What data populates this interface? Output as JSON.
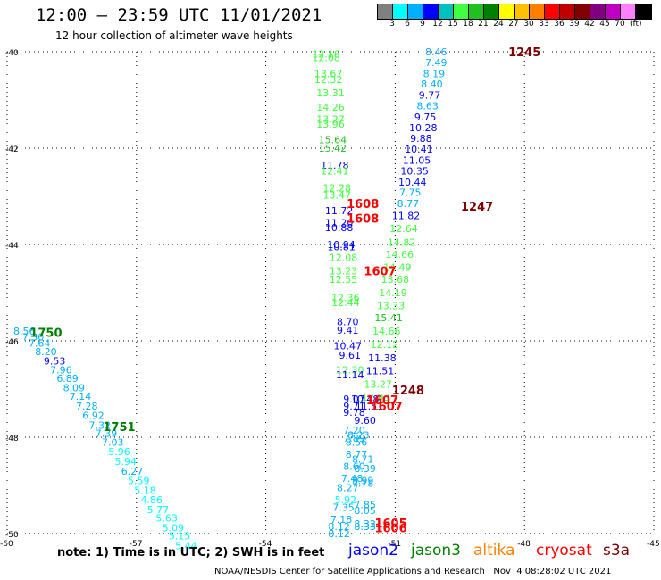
{
  "title": "12:00 – 23:59 UTC 11/01/2021",
  "subtitle": "12 hour collection of altimeter wave heights",
  "colorbar": {
    "colors": [
      "#808080",
      "#00ffff",
      "#00b0ff",
      "#0000ff",
      "#00c0c0",
      "#40ff40",
      "#20c020",
      "#008000",
      "#ffff00",
      "#ffc000",
      "#ff8000",
      "#ff0000",
      "#c00000",
      "#800000",
      "#800080",
      "#c000c0",
      "#ff80ff",
      "#000000"
    ],
    "labels": [
      "3",
      "6",
      "9",
      "12",
      "15",
      "18",
      "21",
      "24",
      "27",
      "30",
      "33",
      "36",
      "39",
      "42",
      "45",
      "70"
    ],
    "unit": "(ft)"
  },
  "axes": {
    "lat_labels": [
      "-40",
      "-42",
      "-44",
      "-46",
      "-48",
      "-50"
    ],
    "lon_labels": [
      "-60",
      "-57",
      "-54",
      "-51",
      "-48",
      "-45"
    ]
  },
  "observations": [
    {
      "lon": -50.05,
      "lat": -40.0,
      "text": "8.46",
      "color": "#20a0ff"
    },
    {
      "lon": -50.05,
      "lat": -40.22,
      "text": "7.49",
      "color": "#00b0ff"
    },
    {
      "lon": -50.1,
      "lat": -40.45,
      "text": "8.19",
      "color": "#00b0ff"
    },
    {
      "lon": -50.15,
      "lat": -40.67,
      "text": "8.40",
      "color": "#00b0ff"
    },
    {
      "lon": -50.2,
      "lat": -40.9,
      "text": "9.77",
      "color": "#0000ff"
    },
    {
      "lon": -50.25,
      "lat": -41.12,
      "text": "8.63",
      "color": "#00b0ff"
    },
    {
      "lon": -50.3,
      "lat": -41.35,
      "text": "9.75",
      "color": "#0000ff"
    },
    {
      "lon": -50.35,
      "lat": -41.57,
      "text": "10.28",
      "color": "#0000ff"
    },
    {
      "lon": -50.4,
      "lat": -41.8,
      "text": "9.88",
      "color": "#0000ff"
    },
    {
      "lon": -50.45,
      "lat": -42.02,
      "text": "10.41",
      "color": "#0000ff"
    },
    {
      "lon": -50.5,
      "lat": -42.25,
      "text": "11.05",
      "color": "#0000ff"
    },
    {
      "lon": -50.55,
      "lat": -42.47,
      "text": "10.35",
      "color": "#0000ff"
    },
    {
      "lon": -50.6,
      "lat": -42.7,
      "text": "10.44",
      "color": "#0000ff"
    },
    {
      "lon": -50.65,
      "lat": -42.92,
      "text": "7.75",
      "color": "#00b0ff"
    },
    {
      "lon": -50.7,
      "lat": -43.15,
      "text": "8.77",
      "color": "#00b0ff"
    },
    {
      "lon": -50.75,
      "lat": -43.4,
      "text": "11.82",
      "color": "#0000ff"
    },
    {
      "lon": -50.8,
      "lat": -43.67,
      "text": "12.64",
      "color": "#40ff40"
    },
    {
      "lon": -50.85,
      "lat": -43.95,
      "text": "14.82",
      "color": "#40ff40"
    },
    {
      "lon": -50.9,
      "lat": -44.2,
      "text": "14.66",
      "color": "#40ff40"
    },
    {
      "lon": -50.95,
      "lat": -44.47,
      "text": "14.49",
      "color": "#40ff40"
    },
    {
      "lon": -51.0,
      "lat": -44.72,
      "text": "13.68",
      "color": "#40ff40"
    },
    {
      "lon": -51.05,
      "lat": -45.0,
      "text": "14.19",
      "color": "#40ff40"
    },
    {
      "lon": -51.1,
      "lat": -45.27,
      "text": "13.33",
      "color": "#40ff40"
    },
    {
      "lon": -51.15,
      "lat": -45.52,
      "text": "15.41",
      "color": "#20c020"
    },
    {
      "lon": -51.2,
      "lat": -45.8,
      "text": "14.66",
      "color": "#40ff40"
    },
    {
      "lon": -51.25,
      "lat": -46.07,
      "text": "12.12",
      "color": "#40ff40"
    },
    {
      "lon": -51.3,
      "lat": -46.35,
      "text": "11.38",
      "color": "#0000ff"
    },
    {
      "lon": -51.35,
      "lat": -46.62,
      "text": "11.51",
      "color": "#0000ff"
    },
    {
      "lon": -51.4,
      "lat": -46.9,
      "text": "13.27",
      "color": "#40ff40"
    },
    {
      "lon": -51.45,
      "lat": -47.17,
      "text": "12.93",
      "color": "#40ff40"
    },
    {
      "lon": -52.6,
      "lat": -40.05,
      "text": "12.18",
      "color": "#40ff40"
    },
    {
      "lon": -52.6,
      "lat": -40.12,
      "text": "12.08",
      "color": "#40ff40"
    },
    {
      "lon": -52.55,
      "lat": -40.45,
      "text": "13.67",
      "color": "#40ff40"
    },
    {
      "lon": -52.55,
      "lat": -40.57,
      "text": "12.32",
      "color": "#40ff40"
    },
    {
      "lon": -52.5,
      "lat": -40.85,
      "text": "13.31",
      "color": "#40ff40"
    },
    {
      "lon": -52.5,
      "lat": -41.15,
      "text": "14.26",
      "color": "#40ff40"
    },
    {
      "lon": -52.5,
      "lat": -41.4,
      "text": "13.27",
      "color": "#40ff40"
    },
    {
      "lon": -52.5,
      "lat": -41.5,
      "text": "13.96",
      "color": "#40ff40"
    },
    {
      "lon": -52.45,
      "lat": -41.82,
      "text": "15.64",
      "color": "#20c020"
    },
    {
      "lon": -52.45,
      "lat": -42.0,
      "text": "15.42",
      "color": "#20c020"
    },
    {
      "lon": -52.4,
      "lat": -42.35,
      "text": "11.78",
      "color": "#0000ff"
    },
    {
      "lon": -52.4,
      "lat": -42.47,
      "text": "12.41",
      "color": "#40ff40"
    },
    {
      "lon": -52.35,
      "lat": -42.82,
      "text": "12.28",
      "color": "#40ff40"
    },
    {
      "lon": -52.35,
      "lat": -42.97,
      "text": "13.47",
      "color": "#40ff40"
    },
    {
      "lon": -52.3,
      "lat": -43.3,
      "text": "11.72",
      "color": "#0000ff"
    },
    {
      "lon": -52.3,
      "lat": -43.55,
      "text": "11.20",
      "color": "#0000ff"
    },
    {
      "lon": -52.3,
      "lat": -43.65,
      "text": "10.88",
      "color": "#0000ff"
    },
    {
      "lon": -52.25,
      "lat": -44.0,
      "text": "10.94",
      "color": "#0000ff"
    },
    {
      "lon": -52.25,
      "lat": -44.05,
      "text": "10.81",
      "color": "#0000ff"
    },
    {
      "lon": -52.2,
      "lat": -44.27,
      "text": "12.08",
      "color": "#40ff40"
    },
    {
      "lon": -52.2,
      "lat": -44.55,
      "text": "13.23",
      "color": "#40ff40"
    },
    {
      "lon": -52.2,
      "lat": -44.72,
      "text": "12.55",
      "color": "#40ff40"
    },
    {
      "lon": -52.15,
      "lat": -45.1,
      "text": "12.36",
      "color": "#40ff40"
    },
    {
      "lon": -52.15,
      "lat": -45.2,
      "text": "12.44",
      "color": "#40ff40"
    },
    {
      "lon": -52.1,
      "lat": -45.6,
      "text": "8.70",
      "color": "#0000ff"
    },
    {
      "lon": -52.1,
      "lat": -45.78,
      "text": "9.41",
      "color": "#0000ff"
    },
    {
      "lon": -52.1,
      "lat": -46.1,
      "text": "10.47",
      "color": "#0000ff"
    },
    {
      "lon": -52.05,
      "lat": -46.3,
      "text": "9.61",
      "color": "#0000ff"
    },
    {
      "lon": -52.05,
      "lat": -46.6,
      "text": "12.30",
      "color": "#40ff40"
    },
    {
      "lon": -52.05,
      "lat": -46.7,
      "text": "11.14",
      "color": "#0000ff"
    },
    {
      "lon": -51.95,
      "lat": -47.2,
      "text": "9.07",
      "color": "#0000ff"
    },
    {
      "lon": -51.7,
      "lat": -47.2,
      "text": "10.48",
      "color": "#0000ff"
    },
    {
      "lon": -51.95,
      "lat": -47.35,
      "text": "9.71",
      "color": "#0000ff"
    },
    {
      "lon": -51.6,
      "lat": -47.35,
      "text": "11.51",
      "color": "#0000ff"
    },
    {
      "lon": -51.95,
      "lat": -47.48,
      "text": "9.78",
      "color": "#0000ff"
    },
    {
      "lon": -51.7,
      "lat": -47.65,
      "text": "9.60",
      "color": "#0000ff"
    },
    {
      "lon": -51.95,
      "lat": -47.85,
      "text": "7.20",
      "color": "#00b0ff"
    },
    {
      "lon": -51.85,
      "lat": -47.95,
      "text": "8.23",
      "color": "#00b0ff"
    },
    {
      "lon": -51.95,
      "lat": -48.02,
      "text": "7.89",
      "color": "#00b0ff"
    },
    {
      "lon": -51.9,
      "lat": -48.1,
      "text": "8.56",
      "color": "#00b0ff"
    },
    {
      "lon": -51.9,
      "lat": -48.35,
      "text": "8.77",
      "color": "#00b0ff"
    },
    {
      "lon": -51.75,
      "lat": -48.45,
      "text": "8.71",
      "color": "#00b0ff"
    },
    {
      "lon": -51.95,
      "lat": -48.6,
      "text": "8.60",
      "color": "#00b0ff"
    },
    {
      "lon": -51.7,
      "lat": -48.65,
      "text": "8.39",
      "color": "#00b0ff"
    },
    {
      "lon": -52.0,
      "lat": -48.85,
      "text": "7.48",
      "color": "#00b0ff"
    },
    {
      "lon": -51.75,
      "lat": -48.9,
      "text": "8.99",
      "color": "#00b0ff"
    },
    {
      "lon": -51.75,
      "lat": -48.95,
      "text": "7.78",
      "color": "#00b0ff"
    },
    {
      "lon": -52.1,
      "lat": -49.05,
      "text": "8.27",
      "color": "#00b0ff"
    },
    {
      "lon": -52.15,
      "lat": -49.3,
      "text": "5.92",
      "color": "#00ffff"
    },
    {
      "lon": -51.7,
      "lat": -49.4,
      "text": "7.85",
      "color": "#00b0ff"
    },
    {
      "lon": -52.2,
      "lat": -49.45,
      "text": "7.35",
      "color": "#00b0ff"
    },
    {
      "lon": -51.7,
      "lat": -49.52,
      "text": "8.05",
      "color": "#00b0ff"
    },
    {
      "lon": -52.25,
      "lat": -49.7,
      "text": "7.18",
      "color": "#00b0ff"
    },
    {
      "lon": -51.7,
      "lat": -49.8,
      "text": "8.32",
      "color": "#00b0ff"
    },
    {
      "lon": -51.7,
      "lat": -49.85,
      "text": "8.33",
      "color": "#00b0ff"
    },
    {
      "lon": -52.3,
      "lat": -49.85,
      "text": "8.12",
      "color": "#00b0ff"
    },
    {
      "lon": -52.3,
      "lat": -50.0,
      "text": "8.12",
      "color": "#00b0ff"
    },
    {
      "lon": -59.6,
      "lat": -45.8,
      "text": "8.56",
      "color": "#00b0ff"
    },
    {
      "lon": -59.4,
      "lat": -45.92,
      "text": "7.30",
      "color": "#00b0ff"
    },
    {
      "lon": -59.25,
      "lat": -46.05,
      "text": "7.64",
      "color": "#00b0ff"
    },
    {
      "lon": -59.1,
      "lat": -46.22,
      "text": "8.20",
      "color": "#00b0ff"
    },
    {
      "lon": -58.9,
      "lat": -46.42,
      "text": "9.53",
      "color": "#0000ff"
    },
    {
      "lon": -58.75,
      "lat": -46.6,
      "text": "7.96",
      "color": "#00b0ff"
    },
    {
      "lon": -58.6,
      "lat": -46.78,
      "text": "6.89",
      "color": "#00b0ff"
    },
    {
      "lon": -58.45,
      "lat": -46.97,
      "text": "8.09",
      "color": "#00b0ff"
    },
    {
      "lon": -58.3,
      "lat": -47.15,
      "text": "7.14",
      "color": "#00b0ff"
    },
    {
      "lon": -58.15,
      "lat": -47.35,
      "text": "7.28",
      "color": "#00b0ff"
    },
    {
      "lon": -58.0,
      "lat": -47.55,
      "text": "6.92",
      "color": "#00b0ff"
    },
    {
      "lon": -57.85,
      "lat": -47.75,
      "text": "7.32",
      "color": "#00b0ff"
    },
    {
      "lon": -57.7,
      "lat": -47.92,
      "text": "7.39",
      "color": "#00b0ff"
    },
    {
      "lon": -57.55,
      "lat": -48.1,
      "text": "7.03",
      "color": "#00b0ff"
    },
    {
      "lon": -57.4,
      "lat": -48.3,
      "text": "5.96",
      "color": "#00ffff"
    },
    {
      "lon": -57.25,
      "lat": -48.5,
      "text": "5.94",
      "color": "#00ffff"
    },
    {
      "lon": -57.1,
      "lat": -48.7,
      "text": "6.27",
      "color": "#00b0ff"
    },
    {
      "lon": -56.95,
      "lat": -48.9,
      "text": "5.59",
      "color": "#00ffff"
    },
    {
      "lon": -56.8,
      "lat": -49.1,
      "text": "5.18",
      "color": "#00ffff"
    },
    {
      "lon": -56.65,
      "lat": -49.3,
      "text": "4.86",
      "color": "#00ffff"
    },
    {
      "lon": -56.5,
      "lat": -49.5,
      "text": "5.77",
      "color": "#00ffff"
    },
    {
      "lon": -56.3,
      "lat": -49.68,
      "text": "5.63",
      "color": "#00ffff"
    },
    {
      "lon": -56.15,
      "lat": -49.88,
      "text": "5.09",
      "color": "#00ffff"
    },
    {
      "lon": -56.0,
      "lat": -50.05,
      "text": "5.15",
      "color": "#00ffff"
    },
    {
      "lon": -55.85,
      "lat": -50.25,
      "text": "5.44",
      "color": "#00ffff"
    }
  ],
  "time_labels": [
    {
      "lon": -48.0,
      "lat": -40.0,
      "text": "1245",
      "color": "#800000"
    },
    {
      "lon": -49.1,
      "lat": -43.2,
      "text": "1247",
      "color": "#800000"
    },
    {
      "lon": -51.75,
      "lat": -43.15,
      "text": "1608",
      "color": "#ff0000"
    },
    {
      "lon": -51.75,
      "lat": -43.45,
      "text": "1608",
      "color": "#ff0000"
    },
    {
      "lon": -51.35,
      "lat": -44.55,
      "text": "1607",
      "color": "#ff0000"
    },
    {
      "lon": -50.7,
      "lat": -47.02,
      "text": "1248",
      "color": "#800000"
    },
    {
      "lon": -51.3,
      "lat": -47.22,
      "text": "1607",
      "color": "#ff0000"
    },
    {
      "lon": -51.2,
      "lat": -47.35,
      "text": "1607",
      "color": "#ff0000"
    },
    {
      "lon": -51.1,
      "lat": -49.78,
      "text": "1605",
      "color": "#ff0000"
    },
    {
      "lon": -51.1,
      "lat": -49.88,
      "text": "1606",
      "color": "#ff0000"
    },
    {
      "lon": -59.1,
      "lat": -45.82,
      "text": "1750",
      "color": "#008000"
    },
    {
      "lon": -57.4,
      "lat": -47.78,
      "text": "1751",
      "color": "#008000"
    }
  ],
  "footer": {
    "note": "note: 1) Time is in UTC; 2) SWH is in feet",
    "satellites": [
      {
        "name": "jason2",
        "color": "#0000ff"
      },
      {
        "name": "jason3",
        "color": "#008000"
      },
      {
        "name": "altika",
        "color": "#ff8000"
      },
      {
        "name": "cryosat",
        "color": "#ff0000"
      },
      {
        "name": "s3a",
        "color": "#800000"
      }
    ],
    "credit": "NOAA/NESDIS Center for Satellite Applications and Research   Nov  4 08:28:02 UTC 2021"
  }
}
